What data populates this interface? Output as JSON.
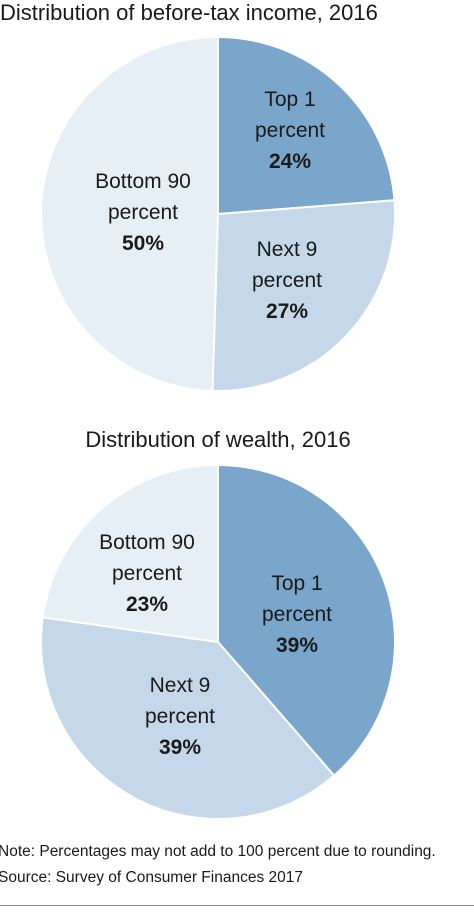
{
  "chart_data": [
    {
      "type": "pie",
      "title": "Distribution of before-tax income, 2016",
      "slices": [
        {
          "name": "Top 1 percent",
          "label_lines": [
            "Top 1",
            "percent"
          ],
          "value": 24,
          "value_label": "24%",
          "color": "#7aa6cc"
        },
        {
          "name": "Next 9 percent",
          "label_lines": [
            "Next 9",
            "percent"
          ],
          "value": 27,
          "value_label": "27%",
          "color": "#c4d8ea"
        },
        {
          "name": "Bottom 90 percent",
          "label_lines": [
            "Bottom 90",
            "percent"
          ],
          "value": 50,
          "value_label": "50%",
          "color": "#e6eef6"
        }
      ]
    },
    {
      "type": "pie",
      "title": "Distribution of wealth, 2016",
      "slices": [
        {
          "name": "Top 1 percent",
          "label_lines": [
            "Top 1",
            "percent"
          ],
          "value": 39,
          "value_label": "39%",
          "color": "#7aa6cc"
        },
        {
          "name": "Next 9 percent",
          "label_lines": [
            "Next 9",
            "percent"
          ],
          "value": 39,
          "value_label": "39%",
          "color": "#c4d8ea"
        },
        {
          "name": "Bottom 90 percent",
          "label_lines": [
            "Bottom 90",
            "percent"
          ],
          "value": 23,
          "value_label": "23%",
          "color": "#e6eef6"
        }
      ]
    }
  ],
  "footer": {
    "note": "Note: Percentages may not add to 100 percent due to rounding.",
    "source": "Source: Survey of Consumer Finances 2017"
  }
}
